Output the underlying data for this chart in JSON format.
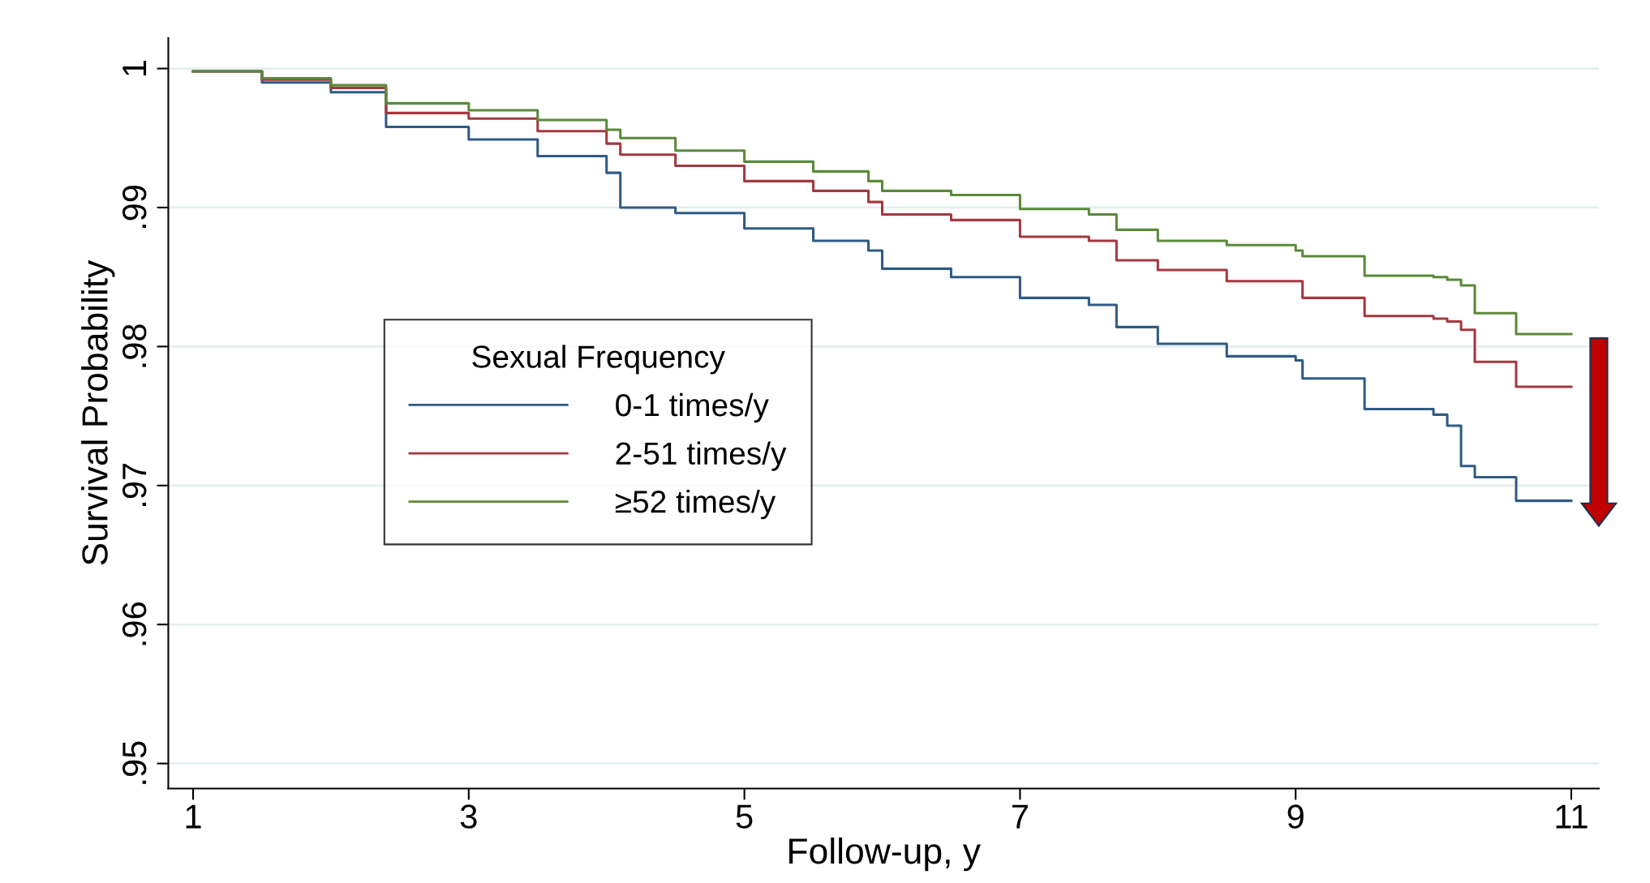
{
  "chart_data": {
    "type": "step",
    "xlabel": "Follow-up, y",
    "ylabel": "Survival Probability",
    "legend_title": "Sexual Frequency",
    "legend": "center left",
    "grid": "y",
    "line_style": "solid",
    "marker": "none",
    "xlim": [
      0.82,
      11.2
    ],
    "xticks": [
      1,
      3,
      5,
      7,
      9,
      11
    ],
    "ylim": [
      0.9482,
      1.0022
    ],
    "yticks": [
      {
        "value": 0.95,
        "label": ".95"
      },
      {
        "value": 0.96,
        "label": ".96"
      },
      {
        "value": 0.97,
        "label": ".97"
      },
      {
        "value": 0.98,
        "label": ".98"
      },
      {
        "value": 0.99,
        "label": ".99"
      },
      {
        "value": 1,
        "label": "1"
      }
    ],
    "x": [
      1,
      1.5,
      2,
      2.4,
      3,
      3.5,
      4,
      4.1,
      4.5,
      5,
      5.5,
      5.9,
      6,
      6.5,
      7,
      7.5,
      7.7,
      8,
      8.5,
      9,
      9.05,
      9.5,
      10,
      10.1,
      10.2,
      10.3,
      10.6,
      11
    ],
    "series": [
      {
        "name": "0-1 times/y",
        "color": "#2f5b85",
        "values": [
          0.9998,
          0.999,
          0.9983,
          0.9958,
          0.9949,
          0.9937,
          0.9925,
          0.99,
          0.9896,
          0.9885,
          0.9876,
          0.9869,
          0.9856,
          0.985,
          0.9835,
          0.983,
          0.9814,
          0.9802,
          0.9793,
          0.979,
          0.9777,
          0.9755,
          0.9751,
          0.9743,
          0.9714,
          0.9706,
          0.9689,
          0.9689
        ]
      },
      {
        "name": "2-51 times/y",
        "color": "#a3393f",
        "values": [
          0.9998,
          0.9992,
          0.9986,
          0.9968,
          0.9964,
          0.9955,
          0.9946,
          0.9938,
          0.993,
          0.9919,
          0.9912,
          0.9904,
          0.9895,
          0.9891,
          0.9879,
          0.9876,
          0.9862,
          0.9855,
          0.9847,
          0.9847,
          0.9835,
          0.9822,
          0.982,
          0.9818,
          0.9812,
          0.9789,
          0.9771,
          0.9771
        ]
      },
      {
        "name": "≥52 times/y",
        "color": "#5a8a3a",
        "values": [
          0.9998,
          0.9993,
          0.9988,
          0.9975,
          0.997,
          0.9963,
          0.9956,
          0.995,
          0.9941,
          0.9933,
          0.9926,
          0.9919,
          0.9912,
          0.9909,
          0.9899,
          0.9895,
          0.9884,
          0.9876,
          0.9873,
          0.9869,
          0.9865,
          0.9851,
          0.985,
          0.9848,
          0.9844,
          0.9824,
          0.9809,
          0.9809
        ]
      }
    ]
  }
}
